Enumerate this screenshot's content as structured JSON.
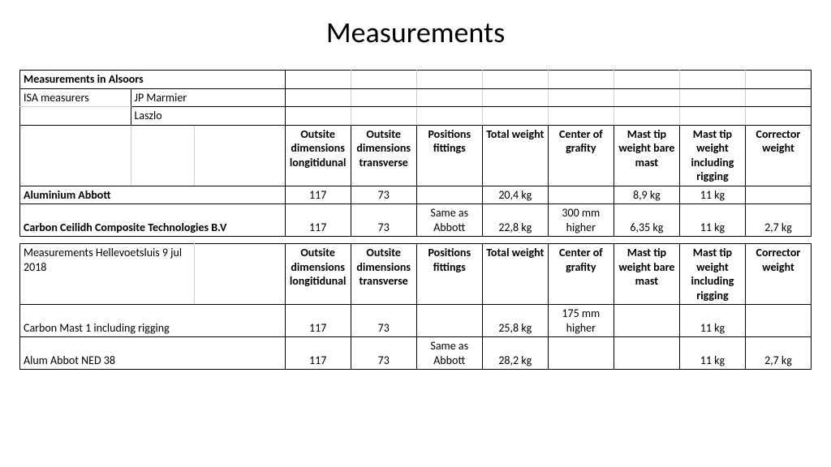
{
  "title": "Measurements",
  "table1": {
    "heading": "Measurements in Alsoors",
    "measurers_label": "ISA measurers",
    "measurer1": "JP Marmier",
    "measurer2": "Laszlo",
    "columns": {
      "c1": "Outsite dimensions longitidunal",
      "c2": "Outsite dimensions transverse",
      "c3": "Positions fittings",
      "c4": "Total weight",
      "c5": "Center of grafity",
      "c6": "Mast tip weight bare mast",
      "c7": "Mast tip weight including rigging",
      "c8": "Corrector weight"
    },
    "row1": {
      "label": "Aluminium Abbott",
      "v1": "117",
      "v2": "73",
      "v3": "",
      "v4": "20,4 kg",
      "v5": "",
      "v6": "8,9 kg",
      "v7": "11 kg",
      "v8": ""
    },
    "row2": {
      "label": "Carbon Ceilidh Composite Technologies B.V",
      "v1": "117",
      "v2": "73",
      "v3": "Same as Abbott",
      "v4": "22,8 kg",
      "v5": "300 mm higher",
      "v6": "6,35 kg",
      "v7": "11 kg",
      "v8": "2,7 kg"
    }
  },
  "table2": {
    "heading": "Measurements Hellevoetsluis 9 jul 2018",
    "columns": {
      "c1": "Outsite dimensions longitidunal",
      "c2": "Outsite dimensions transverse",
      "c3": "Positions fittings",
      "c4": "Total weight",
      "c5": "Center of grafity",
      "c6": "Mast tip weight bare mast",
      "c7": "Mast tip weight including rigging",
      "c8": "Corrector weight"
    },
    "row1": {
      "label": "Carbon Mast 1 including rigging",
      "v1": "117",
      "v2": "73",
      "v3": "",
      "v4": "25,8 kg",
      "v5": "175 mm higher",
      "v6": "",
      "v7": "11 kg",
      "v8": ""
    },
    "row2": {
      "label": "Alum Abbot NED 38",
      "v1": "117",
      "v2": "73",
      "v3": "Same as Abbott",
      "v4": "28,2 kg",
      "v5": "",
      "v6": "",
      "v7": "11 kg",
      "v8": "2,7 kg"
    }
  }
}
